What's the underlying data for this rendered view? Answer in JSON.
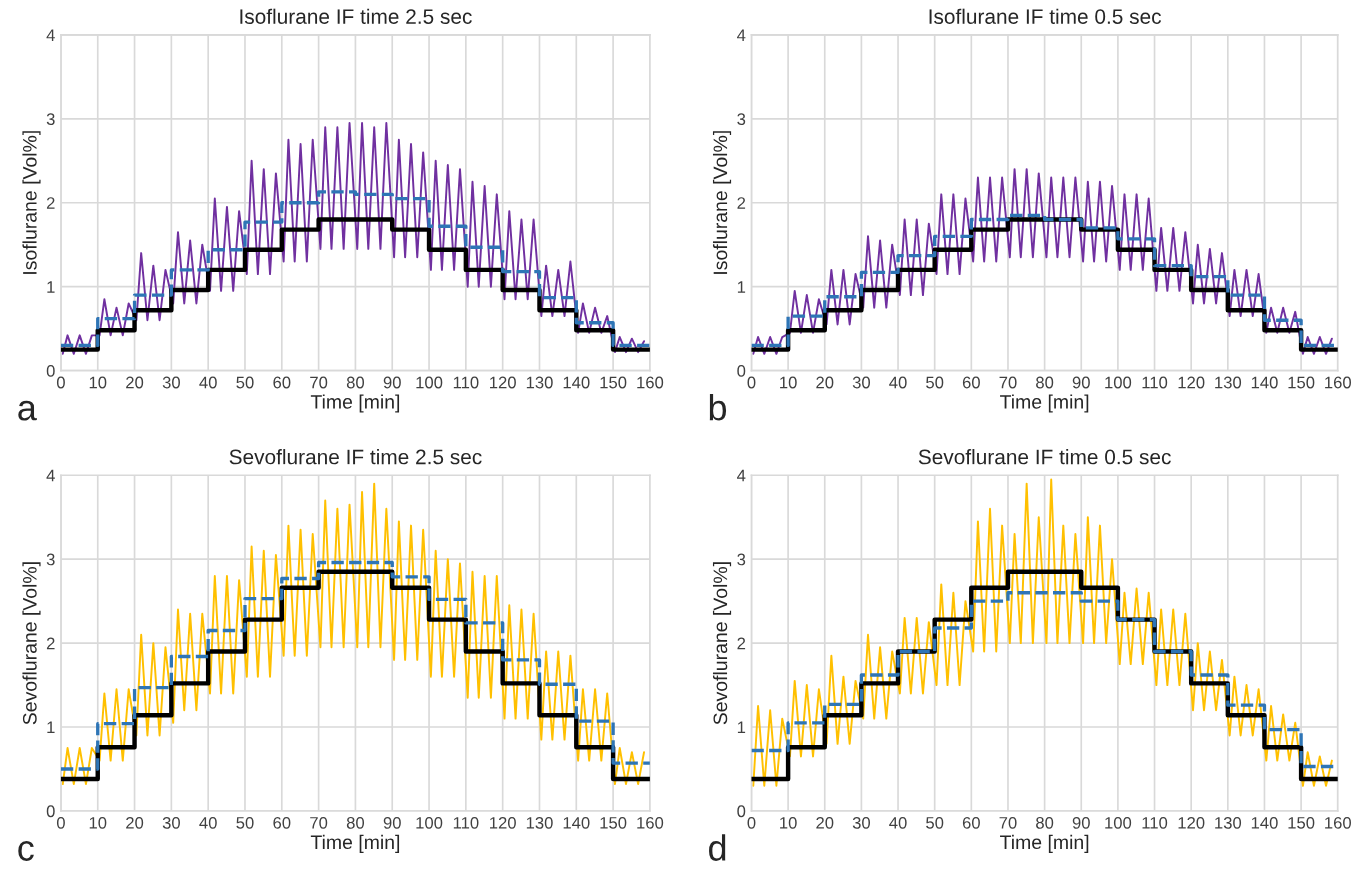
{
  "chart_data": [
    {
      "type": "line",
      "title": "Isoflurane IF time 2.5 sec",
      "xlabel": "Time [min]",
      "ylabel": "Isoflurane [Vol%]",
      "annotations": [
        "a"
      ],
      "xlim": [
        0,
        160
      ],
      "ylim": [
        0,
        4
      ],
      "xticks": [
        0,
        10,
        20,
        30,
        40,
        50,
        60,
        70,
        80,
        90,
        100,
        110,
        120,
        130,
        140,
        150,
        160
      ],
      "yticks": [
        0,
        1,
        2,
        3,
        4
      ],
      "grid": true,
      "legend": false,
      "series": [
        {
          "color": "#7030a0",
          "x": [
            0.5,
            1.8,
            3.5,
            5.1,
            6.8,
            8.4,
            10.5,
            11.8,
            13.5,
            15.1,
            16.8,
            18.4,
            20.5,
            21.8,
            23.5,
            25.1,
            26.8,
            28.4,
            30.5,
            31.8,
            33.5,
            35.1,
            36.8,
            38.4,
            40.5,
            41.8,
            43.5,
            45.1,
            46.8,
            48.4,
            50.5,
            51.8,
            53.5,
            55.1,
            56.8,
            58.4,
            60.5,
            61.8,
            63.5,
            65.1,
            66.8,
            68.4,
            70.5,
            71.8,
            73.5,
            75.1,
            76.8,
            78.4,
            80.5,
            81.8,
            83.5,
            85.1,
            86.8,
            88.4,
            90.5,
            91.8,
            93.5,
            95.1,
            96.8,
            98.4,
            100.5,
            101.8,
            103.5,
            105.1,
            106.8,
            108.4,
            110.5,
            111.8,
            113.5,
            115.1,
            116.8,
            118.4,
            120.5,
            121.8,
            123.5,
            125.1,
            126.8,
            128.4,
            130.5,
            131.8,
            133.5,
            135.1,
            136.8,
            138.4,
            140.5,
            141.8,
            143.5,
            145.1,
            146.8,
            148.4,
            150.5,
            151.8,
            153.5,
            155.1,
            156.8,
            158.4
          ],
          "values": [
            0.2,
            0.42,
            0.2,
            0.42,
            0.2,
            0.42,
            0.42,
            0.85,
            0.42,
            0.75,
            0.42,
            0.8,
            0.6,
            1.4,
            0.6,
            1.25,
            0.6,
            1.2,
            0.8,
            1.65,
            0.8,
            1.55,
            0.8,
            1.5,
            0.95,
            2.05,
            0.95,
            1.95,
            0.95,
            1.9,
            1.15,
            2.5,
            1.15,
            2.4,
            1.15,
            2.35,
            1.3,
            2.75,
            1.3,
            2.7,
            1.3,
            2.75,
            1.45,
            2.9,
            1.45,
            2.9,
            1.45,
            2.95,
            1.45,
            2.95,
            1.45,
            2.9,
            1.45,
            2.95,
            1.35,
            2.75,
            1.35,
            2.7,
            1.35,
            2.6,
            1.2,
            2.5,
            1.2,
            2.45,
            1.2,
            2.4,
            1.0,
            2.25,
            1.0,
            2.2,
            1.0,
            2.1,
            0.85,
            1.9,
            0.85,
            1.8,
            0.85,
            1.8,
            0.65,
            1.25,
            0.65,
            1.2,
            0.65,
            1.3,
            0.45,
            0.8,
            0.45,
            0.75,
            0.45,
            0.65,
            0.22,
            0.4,
            0.22,
            0.38,
            0.22,
            0.35
          ]
        },
        {
          "type": "step",
          "color": "#000000",
          "x": [
            0,
            10,
            20,
            30,
            40,
            50,
            60,
            70,
            80,
            90,
            100,
            110,
            120,
            130,
            140,
            150,
            160
          ],
          "values": [
            0.25,
            0.48,
            0.72,
            0.96,
            1.2,
            1.44,
            1.68,
            1.8,
            1.8,
            1.68,
            1.44,
            1.2,
            0.96,
            0.72,
            0.48,
            0.25,
            0.25
          ]
        },
        {
          "type": "step",
          "color": "#2e75b6",
          "line_style": "dashed",
          "x": [
            0,
            10,
            20,
            30,
            40,
            50,
            60,
            70,
            80,
            90,
            100,
            110,
            120,
            130,
            140,
            150,
            160
          ],
          "values": [
            0.3,
            0.62,
            0.9,
            1.2,
            1.44,
            1.77,
            2.0,
            2.13,
            2.1,
            2.05,
            1.72,
            1.47,
            1.18,
            0.87,
            0.57,
            0.3,
            0.3
          ]
        }
      ]
    },
    {
      "type": "line",
      "title": "Isoflurane IF time 0.5 sec",
      "xlabel": "Time [min]",
      "ylabel": "Isoflurane [Vol%]",
      "annotations": [
        "b"
      ],
      "xlim": [
        0,
        160
      ],
      "ylim": [
        0,
        4
      ],
      "xticks": [
        0,
        10,
        20,
        30,
        40,
        50,
        60,
        70,
        80,
        90,
        100,
        110,
        120,
        130,
        140,
        150,
        160
      ],
      "yticks": [
        0,
        1,
        2,
        3,
        4
      ],
      "grid": true,
      "legend": false,
      "series": [
        {
          "color": "#7030a0",
          "x": [
            0.5,
            1.8,
            3.5,
            5.1,
            6.8,
            8.4,
            10.5,
            11.8,
            13.5,
            15.1,
            16.8,
            18.4,
            20.5,
            21.8,
            23.5,
            25.1,
            26.8,
            28.4,
            30.5,
            31.8,
            33.5,
            35.1,
            36.8,
            38.4,
            40.5,
            41.8,
            43.5,
            45.1,
            46.8,
            48.4,
            50.5,
            51.8,
            53.5,
            55.1,
            56.8,
            58.4,
            60.5,
            61.8,
            63.5,
            65.1,
            66.8,
            68.4,
            70.5,
            71.8,
            73.5,
            75.1,
            76.8,
            78.4,
            80.5,
            81.8,
            83.5,
            85.1,
            86.8,
            88.4,
            90.5,
            91.8,
            93.5,
            95.1,
            96.8,
            98.4,
            100.5,
            101.8,
            103.5,
            105.1,
            106.8,
            108.4,
            110.5,
            111.8,
            113.5,
            115.1,
            116.8,
            118.4,
            120.5,
            121.8,
            123.5,
            125.1,
            126.8,
            128.4,
            130.5,
            131.8,
            133.5,
            135.1,
            136.8,
            138.4,
            140.5,
            141.8,
            143.5,
            145.1,
            146.8,
            148.4,
            150.5,
            151.8,
            153.5,
            155.1,
            156.8,
            158.4
          ],
          "values": [
            0.2,
            0.4,
            0.2,
            0.4,
            0.2,
            0.4,
            0.45,
            0.95,
            0.45,
            0.9,
            0.45,
            0.85,
            0.55,
            1.2,
            0.55,
            1.2,
            0.55,
            1.15,
            0.75,
            1.6,
            0.75,
            1.55,
            0.75,
            1.5,
            0.9,
            1.8,
            0.9,
            1.8,
            0.9,
            1.75,
            1.15,
            2.1,
            1.15,
            2.1,
            1.15,
            2.05,
            1.3,
            2.3,
            1.3,
            2.3,
            1.3,
            2.3,
            1.35,
            2.4,
            1.35,
            2.4,
            1.35,
            2.35,
            1.35,
            2.3,
            1.35,
            2.3,
            1.35,
            2.3,
            1.3,
            2.25,
            1.3,
            2.25,
            1.3,
            2.2,
            1.2,
            2.1,
            1.2,
            2.1,
            1.2,
            2.05,
            0.95,
            1.7,
            0.95,
            1.7,
            0.95,
            1.65,
            0.8,
            1.5,
            0.8,
            1.45,
            0.8,
            1.4,
            0.65,
            1.2,
            0.65,
            1.2,
            0.65,
            1.15,
            0.45,
            0.75,
            0.45,
            0.75,
            0.45,
            0.7,
            0.2,
            0.4,
            0.2,
            0.4,
            0.2,
            0.38
          ]
        },
        {
          "type": "step",
          "color": "#000000",
          "x": [
            0,
            10,
            20,
            30,
            40,
            50,
            60,
            70,
            80,
            90,
            100,
            110,
            120,
            130,
            140,
            150,
            160
          ],
          "values": [
            0.25,
            0.48,
            0.72,
            0.96,
            1.2,
            1.44,
            1.68,
            1.8,
            1.8,
            1.68,
            1.44,
            1.2,
            0.96,
            0.72,
            0.48,
            0.25,
            0.25
          ]
        },
        {
          "type": "step",
          "color": "#2e75b6",
          "line_style": "dashed",
          "x": [
            0,
            10,
            20,
            30,
            40,
            50,
            60,
            70,
            80,
            90,
            100,
            110,
            120,
            130,
            140,
            150,
            160
          ],
          "values": [
            0.3,
            0.65,
            0.88,
            1.17,
            1.37,
            1.6,
            1.8,
            1.85,
            1.8,
            1.7,
            1.57,
            1.25,
            1.12,
            0.9,
            0.6,
            0.3,
            0.3
          ]
        }
      ]
    },
    {
      "type": "line",
      "title": "Sevoflurane IF time 2.5 sec",
      "xlabel": "Time [min]",
      "ylabel": "Sevoflurane [Vol%]",
      "annotations": [
        "c"
      ],
      "xlim": [
        0,
        160
      ],
      "ylim": [
        0,
        4
      ],
      "xticks": [
        0,
        10,
        20,
        30,
        40,
        50,
        60,
        70,
        80,
        90,
        100,
        110,
        120,
        130,
        140,
        150,
        160
      ],
      "yticks": [
        0,
        1,
        2,
        3,
        4
      ],
      "grid": true,
      "legend": false,
      "series": [
        {
          "color": "#ffc000",
          "x": [
            0.5,
            1.8,
            3.5,
            5.1,
            6.8,
            8.4,
            10.5,
            11.8,
            13.5,
            15.1,
            16.8,
            18.4,
            20.5,
            21.8,
            23.5,
            25.1,
            26.8,
            28.4,
            30.5,
            31.8,
            33.5,
            35.1,
            36.8,
            38.4,
            40.5,
            41.8,
            43.5,
            45.1,
            46.8,
            48.4,
            50.5,
            51.8,
            53.5,
            55.1,
            56.8,
            58.4,
            60.5,
            61.8,
            63.5,
            65.1,
            66.8,
            68.4,
            70.5,
            71.8,
            73.5,
            75.1,
            76.8,
            78.4,
            80.5,
            81.8,
            83.5,
            85.1,
            86.8,
            88.4,
            90.5,
            91.8,
            93.5,
            95.1,
            96.8,
            98.4,
            100.5,
            101.8,
            103.5,
            105.1,
            106.8,
            108.4,
            110.5,
            111.8,
            113.5,
            115.1,
            116.8,
            118.4,
            120.5,
            121.8,
            123.5,
            125.1,
            126.8,
            128.4,
            130.5,
            131.8,
            133.5,
            135.1,
            136.8,
            138.4,
            140.5,
            141.8,
            143.5,
            145.1,
            146.8,
            148.4,
            150.5,
            151.8,
            153.5,
            155.1,
            156.8,
            158.4
          ],
          "values": [
            0.32,
            0.75,
            0.32,
            0.75,
            0.32,
            0.75,
            0.6,
            1.4,
            0.6,
            1.45,
            0.6,
            1.45,
            0.9,
            2.1,
            0.9,
            2.0,
            0.9,
            1.95,
            1.05,
            2.4,
            1.2,
            2.35,
            1.2,
            2.35,
            1.4,
            2.8,
            1.4,
            2.8,
            1.4,
            2.75,
            1.6,
            3.15,
            1.6,
            3.1,
            1.6,
            3.05,
            1.85,
            3.4,
            1.85,
            3.35,
            1.85,
            3.3,
            1.95,
            3.7,
            1.95,
            3.6,
            1.95,
            3.65,
            1.95,
            3.8,
            1.95,
            3.9,
            1.95,
            3.6,
            1.8,
            3.45,
            1.8,
            3.4,
            1.8,
            3.35,
            1.6,
            3.1,
            1.6,
            3.0,
            1.6,
            2.95,
            1.35,
            2.85,
            1.35,
            2.8,
            1.35,
            2.8,
            1.1,
            2.45,
            1.1,
            2.4,
            1.1,
            2.35,
            0.85,
            1.9,
            0.85,
            1.9,
            0.85,
            1.85,
            0.6,
            1.45,
            0.6,
            1.45,
            0.6,
            1.4,
            0.32,
            0.75,
            0.32,
            0.7,
            0.32,
            0.7
          ]
        },
        {
          "type": "step",
          "color": "#000000",
          "x": [
            0,
            10,
            20,
            30,
            40,
            50,
            60,
            70,
            80,
            90,
            100,
            110,
            120,
            130,
            140,
            150,
            160
          ],
          "values": [
            0.38,
            0.76,
            1.14,
            1.52,
            1.9,
            2.28,
            2.66,
            2.85,
            2.85,
            2.66,
            2.28,
            1.9,
            1.52,
            1.14,
            0.76,
            0.38,
            0.38
          ]
        },
        {
          "type": "step",
          "color": "#2e75b6",
          "line_style": "dashed",
          "x": [
            0,
            10,
            20,
            30,
            40,
            50,
            60,
            70,
            80,
            90,
            100,
            110,
            120,
            130,
            140,
            150,
            160
          ],
          "values": [
            0.5,
            1.04,
            1.47,
            1.84,
            2.15,
            2.53,
            2.77,
            2.96,
            2.96,
            2.79,
            2.52,
            2.24,
            1.8,
            1.51,
            1.07,
            0.57,
            0.57
          ]
        }
      ]
    },
    {
      "type": "line",
      "title": "Sevoflurane IF time 0.5 sec",
      "xlabel": "Time [min]",
      "ylabel": "Sevoflurane [Vol%]",
      "annotations": [
        "d"
      ],
      "xlim": [
        0,
        160
      ],
      "ylim": [
        0,
        4
      ],
      "xticks": [
        0,
        10,
        20,
        30,
        40,
        50,
        60,
        70,
        80,
        90,
        100,
        110,
        120,
        130,
        140,
        150,
        160
      ],
      "yticks": [
        0,
        1,
        2,
        3,
        4
      ],
      "grid": true,
      "legend": false,
      "series": [
        {
          "color": "#ffc000",
          "x": [
            0.5,
            1.8,
            3.5,
            5.1,
            6.8,
            8.4,
            10.5,
            11.8,
            13.5,
            15.1,
            16.8,
            18.4,
            20.5,
            21.8,
            23.5,
            25.1,
            26.8,
            28.4,
            30.5,
            31.8,
            33.5,
            35.1,
            36.8,
            38.4,
            40.5,
            41.8,
            43.5,
            45.1,
            46.8,
            48.4,
            50.5,
            51.8,
            53.5,
            55.1,
            56.8,
            58.4,
            60.5,
            61.8,
            63.5,
            65.1,
            66.8,
            68.4,
            70.5,
            71.8,
            73.5,
            75.1,
            76.8,
            78.4,
            80.5,
            81.8,
            83.5,
            85.1,
            86.8,
            88.4,
            90.5,
            91.8,
            93.5,
            95.1,
            96.8,
            98.4,
            100.5,
            101.8,
            103.5,
            105.1,
            106.8,
            108.4,
            110.5,
            111.8,
            113.5,
            115.1,
            116.8,
            118.4,
            120.5,
            121.8,
            123.5,
            125.1,
            126.8,
            128.4,
            130.5,
            131.8,
            133.5,
            135.1,
            136.8,
            138.4,
            140.5,
            141.8,
            143.5,
            145.1,
            146.8,
            148.4,
            150.5,
            151.8,
            153.5,
            155.1,
            156.8,
            158.4
          ],
          "values": [
            0.3,
            1.25,
            0.3,
            1.2,
            0.3,
            1.1,
            0.65,
            1.55,
            0.65,
            1.5,
            0.65,
            1.45,
            0.8,
            1.85,
            0.8,
            1.6,
            0.8,
            1.55,
            1.1,
            2.1,
            1.1,
            1.95,
            1.1,
            1.9,
            1.4,
            2.3,
            1.4,
            2.3,
            1.4,
            2.25,
            1.5,
            2.7,
            1.5,
            2.6,
            1.5,
            2.5,
            1.9,
            3.45,
            1.9,
            3.6,
            1.9,
            3.4,
            2.0,
            3.3,
            2.0,
            3.9,
            2.0,
            3.5,
            2.0,
            3.95,
            2.0,
            3.4,
            2.0,
            3.3,
            2.0,
            3.5,
            2.0,
            3.4,
            2.0,
            3.0,
            1.75,
            2.6,
            1.75,
            2.65,
            1.75,
            2.6,
            1.5,
            2.4,
            1.5,
            2.4,
            1.5,
            2.35,
            1.2,
            2.0,
            1.2,
            1.9,
            1.2,
            1.8,
            0.9,
            1.6,
            0.9,
            1.5,
            0.9,
            1.45,
            0.6,
            1.25,
            0.6,
            1.15,
            0.6,
            1.05,
            0.3,
            0.7,
            0.3,
            0.65,
            0.3,
            0.6
          ]
        },
        {
          "type": "step",
          "color": "#000000",
          "x": [
            0,
            10,
            20,
            30,
            40,
            50,
            60,
            70,
            80,
            90,
            100,
            110,
            120,
            130,
            140,
            150,
            160
          ],
          "values": [
            0.38,
            0.76,
            1.14,
            1.52,
            1.9,
            2.28,
            2.66,
            2.85,
            2.85,
            2.66,
            2.28,
            1.9,
            1.52,
            1.14,
            0.76,
            0.38,
            0.38
          ]
        },
        {
          "type": "step",
          "color": "#2e75b6",
          "line_style": "dashed",
          "x": [
            0,
            10,
            20,
            30,
            40,
            50,
            60,
            70,
            80,
            90,
            100,
            110,
            120,
            130,
            140,
            150,
            160
          ],
          "values": [
            0.72,
            1.05,
            1.27,
            1.62,
            1.9,
            2.18,
            2.5,
            2.6,
            2.6,
            2.5,
            2.28,
            1.9,
            1.62,
            1.26,
            0.97,
            0.53,
            0.53
          ]
        }
      ]
    }
  ]
}
